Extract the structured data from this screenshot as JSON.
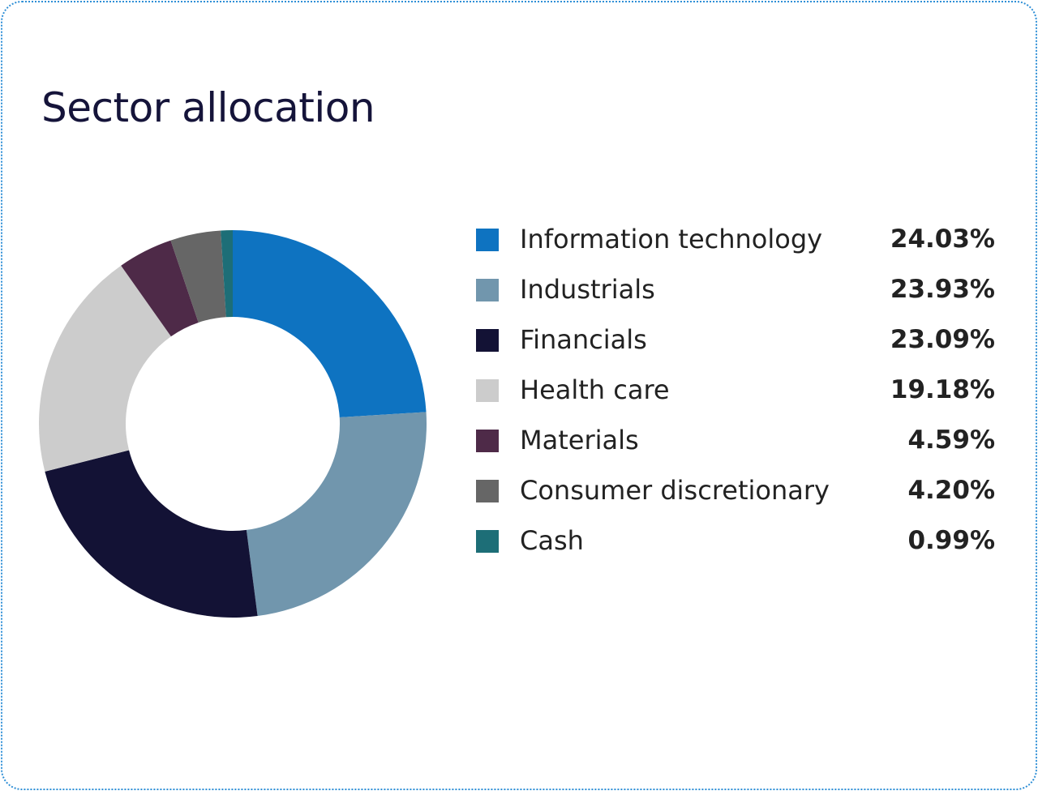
{
  "chart_data": {
    "type": "pie",
    "title": "Sector allocation",
    "categories": [
      "Information technology",
      "Industrials",
      "Financials",
      "Health care",
      "Materials",
      "Consumer discretionary",
      "Cash"
    ],
    "values": [
      24.03,
      23.93,
      23.09,
      19.18,
      4.59,
      4.2,
      0.99
    ],
    "value_labels": [
      "24.03%",
      "23.93%",
      "23.09%",
      "19.18%",
      "4.59%",
      "4.20%",
      "0.99%"
    ],
    "colors": [
      "#0e73c1",
      "#7196ad",
      "#131235",
      "#cccccc",
      "#4e2a48",
      "#666666",
      "#1d6e77"
    ],
    "hole": "donut",
    "legend_position": "right"
  }
}
